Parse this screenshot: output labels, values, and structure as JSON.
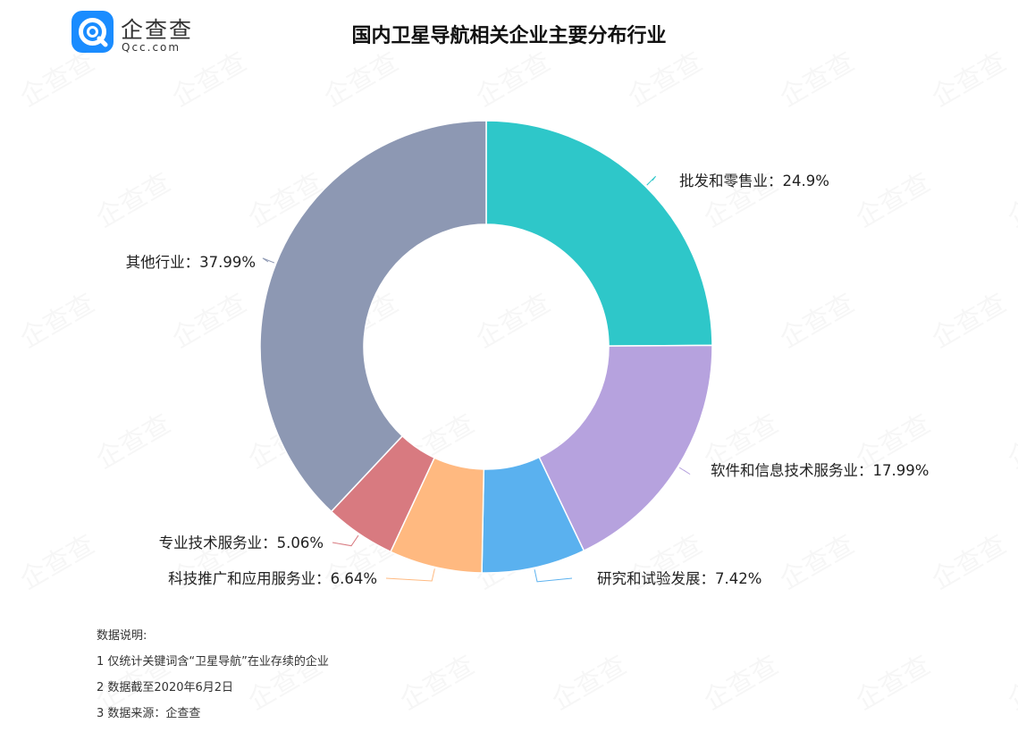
{
  "brand": {
    "name": "企查查",
    "domain": "Qcc.com",
    "color": "#1a8cff"
  },
  "watermark": "企查查",
  "chart_data": {
    "type": "pie",
    "variant": "donut",
    "title": "国内卫星导航相关企业主要分布行业",
    "slices": [
      {
        "label": "批发和零售业",
        "value": 24.9,
        "display": "24.9%",
        "color": "#2ec7c9"
      },
      {
        "label": "软件和信息技术服务业",
        "value": 17.99,
        "display": "17.99%",
        "color": "#b6a2de"
      },
      {
        "label": "研究和试验发展",
        "value": 7.42,
        "display": "7.42%",
        "color": "#5ab1ef"
      },
      {
        "label": "科技推广和应用服务业",
        "value": 6.64,
        "display": "6.64%",
        "color": "#ffb980"
      },
      {
        "label": "专业技术服务业",
        "value": 5.06,
        "display": "5.06%",
        "color": "#d87a80"
      },
      {
        "label": "其他行业",
        "value": 37.99,
        "display": "37.99%",
        "color": "#8d98b3"
      }
    ],
    "label_separator": "："
  },
  "notes": {
    "heading": "数据说明:",
    "items": [
      "1 仅统计关键词含“卫星导航”在业存续的企业",
      "2 数据截至2020年6月2日",
      "3 数据来源：企查查"
    ]
  }
}
